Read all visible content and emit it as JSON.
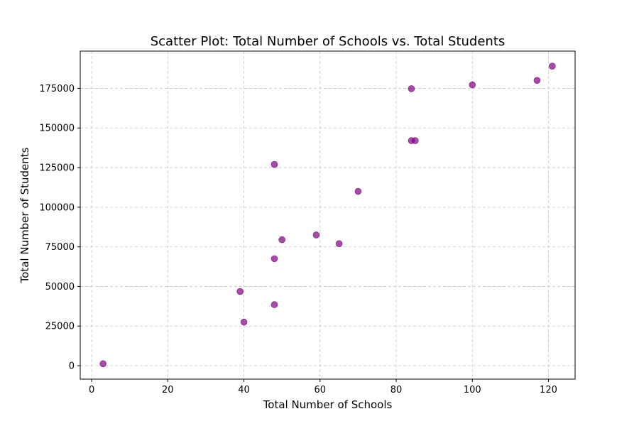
{
  "chart_data": {
    "type": "scatter",
    "title": "Scatter Plot: Total Number of Schools vs. Total Students",
    "xlabel": "Total Number of Schools",
    "ylabel": "Total Number of Students",
    "xlim": [
      -3,
      127
    ],
    "ylim": [
      -8500,
      198500
    ],
    "xticks": [
      0,
      20,
      40,
      60,
      80,
      100,
      120
    ],
    "yticks": [
      0,
      25000,
      50000,
      75000,
      100000,
      125000,
      150000,
      175000
    ],
    "grid": true,
    "marker_color": "#800080",
    "marker_opacity": 0.7,
    "points": [
      {
        "x": 3,
        "y": 1200
      },
      {
        "x": 39,
        "y": 46800
      },
      {
        "x": 40,
        "y": 27500
      },
      {
        "x": 48,
        "y": 38500
      },
      {
        "x": 48,
        "y": 67500
      },
      {
        "x": 48,
        "y": 127000
      },
      {
        "x": 50,
        "y": 79500
      },
      {
        "x": 59,
        "y": 82500
      },
      {
        "x": 65,
        "y": 77000
      },
      {
        "x": 70,
        "y": 110000
      },
      {
        "x": 84,
        "y": 142000
      },
      {
        "x": 85,
        "y": 142000
      },
      {
        "x": 84,
        "y": 174800
      },
      {
        "x": 100,
        "y": 177200
      },
      {
        "x": 117,
        "y": 180000
      },
      {
        "x": 121,
        "y": 189000
      }
    ]
  }
}
